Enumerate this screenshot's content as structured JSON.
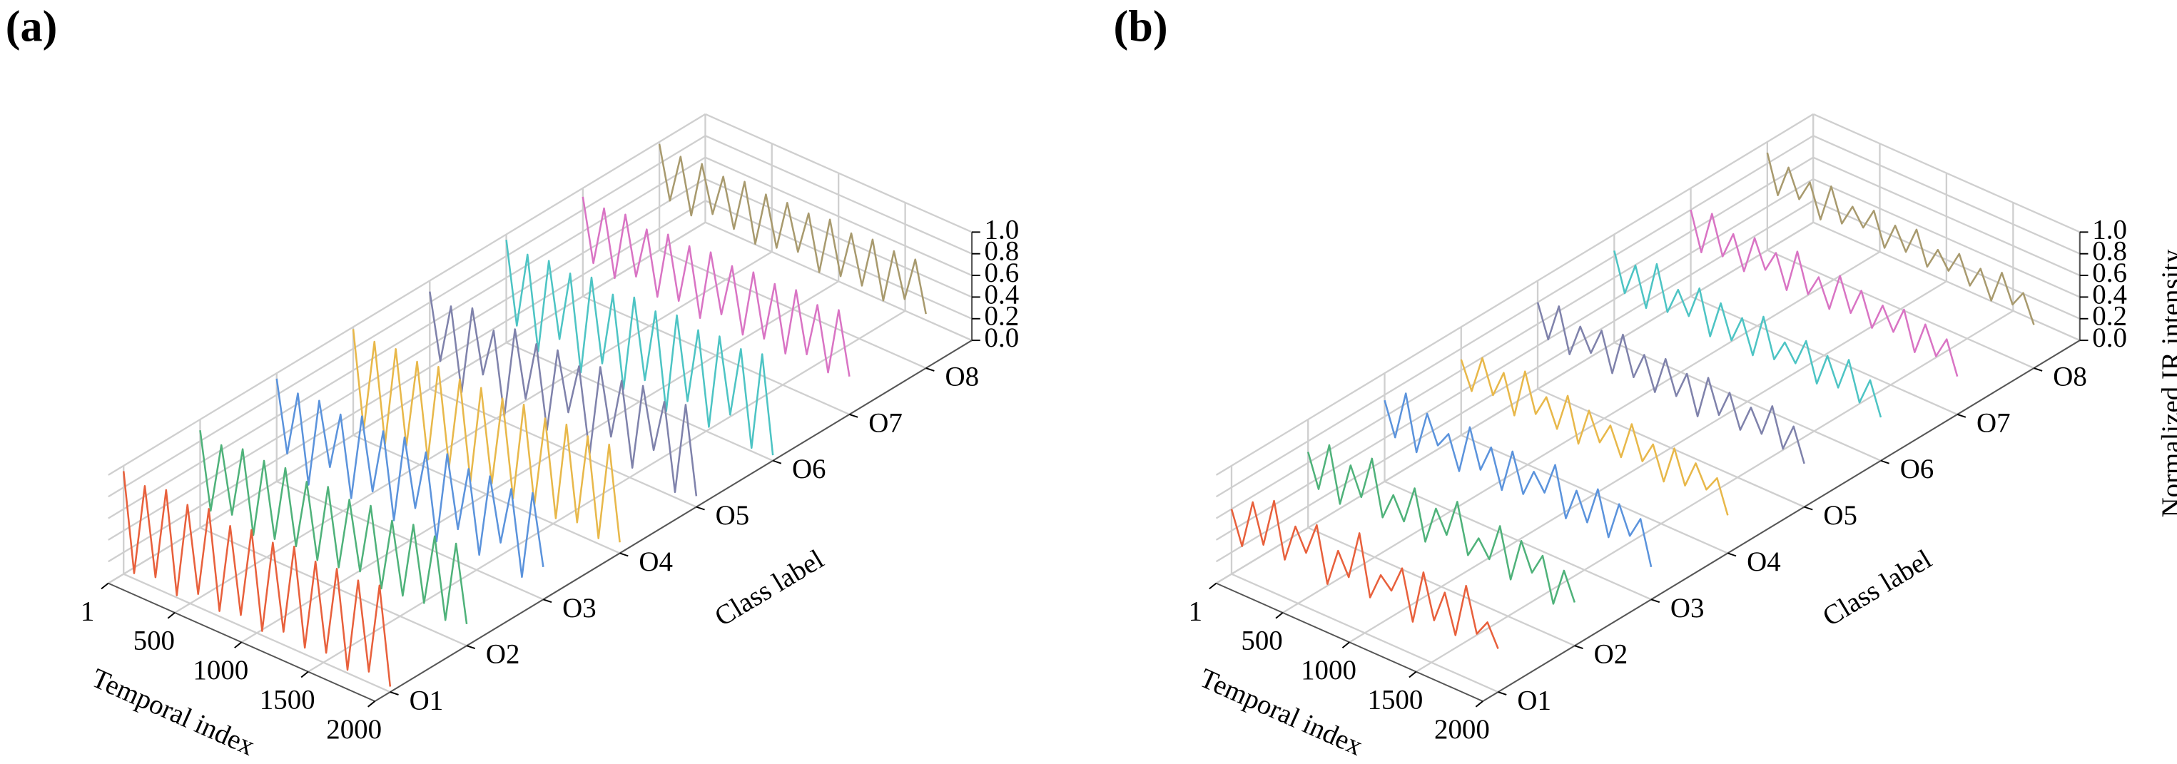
{
  "chart_data": [
    {
      "type": "line3d",
      "title": "(a)",
      "xlabel": "Temporal index",
      "ylabel": "Class label",
      "x": [
        1,
        80,
        160,
        240,
        320,
        400,
        480,
        560,
        640,
        720,
        800,
        880,
        960,
        1040,
        1120,
        1200,
        1280,
        1360,
        1440,
        1520,
        1600,
        1680,
        1760,
        1840,
        1920,
        2000
      ],
      "xlim": [
        1,
        2000
      ],
      "xticks": [
        1,
        500,
        1000,
        1500,
        2000
      ],
      "categories": [
        "O1",
        "O2",
        "O3",
        "O4",
        "O5",
        "O6",
        "O7",
        "O8"
      ],
      "ylim": [
        0.8,
        8.6
      ],
      "zlim": [
        0,
        1
      ],
      "zticks": [
        {
          "value": 0,
          "label": "0.0"
        },
        {
          "value": 0.2,
          "label": "0.2"
        },
        {
          "value": 0.4,
          "label": "0.4"
        },
        {
          "value": 0.6,
          "label": "0.6"
        },
        {
          "value": 0.8,
          "label": "0.8"
        },
        {
          "value": 1,
          "label": "1.0"
        }
      ],
      "grid": true,
      "series": [
        {
          "color": "#e8603c",
          "values": [
            0.95,
            0.05,
            0.9,
            0.1,
            0.95,
            0.02,
            0.9,
            0.12,
            0.95,
            0.05,
            0.88,
            0.1,
            0.93,
            0.04,
            0.9,
            0.12,
            0.95,
            0.06,
            0.9,
            0.1,
            0.92,
            0.03,
            0.9,
            0.1,
            0.94,
            0.05
          ]
        },
        {
          "color": "#4fb27a",
          "values": [
            0.9,
            0.2,
            0.85,
            0.25,
            0.9,
            0.15,
            0.88,
            0.2,
            0.9,
            0.22,
            0.86,
            0.18,
            0.9,
            0.2,
            0.87,
            0.25,
            0.9,
            0.18,
            0.85,
            0.2,
            0.9,
            0.22,
            0.88,
            0.15,
            0.9,
            0.2
          ]
        },
        {
          "color": "#5b93dc",
          "values": [
            0.95,
            0.3,
            0.9,
            0.1,
            0.92,
            0.35,
            0.88,
            0.15,
            0.95,
            0.3,
            0.9,
            0.12,
            0.93,
            0.32,
            0.88,
            0.1,
            0.95,
            0.3,
            0.9,
            0.15,
            0.92,
            0.35,
            0.89,
            0.12,
            0.94,
            0.3
          ]
        },
        {
          "color": "#e8b84a",
          "values": [
            0.98,
            0.1,
            0.95,
            0.05,
            0.97,
            0.12,
            0.94,
            0.08,
            0.98,
            0.1,
            0.95,
            0.05,
            0.96,
            0.12,
            0.95,
            0.07,
            0.98,
            0.1,
            0.94,
            0.06,
            0.97,
            0.11,
            0.95,
            0.05,
            0.96,
            0.1
          ]
        },
        {
          "color": "#7f82ab",
          "values": [
            0.9,
            0.3,
            0.85,
            0.1,
            0.92,
            0.35,
            0.8,
            0.05,
            0.9,
            0.3,
            0.85,
            0.1,
            0.88,
            0.35,
            0.82,
            0.05,
            0.9,
            0.3,
            0.86,
            0.1,
            0.9,
            0.35,
            0.84,
            0.05,
            0.9,
            0.1
          ]
        },
        {
          "color": "#4dc4c4",
          "values": [
            0.95,
            0.2,
            0.9,
            0.05,
            0.93,
            0.25,
            0.9,
            0.03,
            0.95,
            0.2,
            0.88,
            0.05,
            0.94,
            0.22,
            0.9,
            0.02,
            0.95,
            0.2,
            0.9,
            0.05,
            0.93,
            0.25,
            0.9,
            0.03,
            0.94,
            0.05
          ]
        },
        {
          "color": "#d974c4",
          "values": [
            0.92,
            0.35,
            0.9,
            0.3,
            0.93,
            0.4,
            0.88,
            0.3,
            0.92,
            0.35,
            0.9,
            0.28,
            0.93,
            0.4,
            0.89,
            0.3,
            0.92,
            0.35,
            0.9,
            0.3,
            0.93,
            0.38,
            0.88,
            0.3,
            0.92,
            0.35
          ]
        },
        {
          "color": "#a89a6e",
          "values": [
            0.98,
            0.5,
            0.95,
            0.45,
            0.97,
            0.55,
            0.94,
            0.5,
            0.98,
            0.45,
            0.95,
            0.5,
            0.96,
            0.55,
            0.95,
            0.45,
            0.98,
            0.5,
            0.94,
            0.5,
            0.97,
            0.45,
            0.95,
            0.55,
            0.96,
            0.5
          ]
        }
      ]
    },
    {
      "type": "line3d",
      "title": "(b)",
      "xlabel": "Temporal index",
      "ylabel": "Class label",
      "zlabel": "Normalized IR intensity",
      "x": [
        1,
        80,
        160,
        240,
        320,
        400,
        480,
        560,
        640,
        720,
        800,
        880,
        960,
        1040,
        1120,
        1200,
        1280,
        1360,
        1440,
        1520,
        1600,
        1680,
        1760,
        1840,
        1920,
        2000
      ],
      "xlim": [
        1,
        2000
      ],
      "xticks": [
        1,
        500,
        1000,
        1500,
        2000
      ],
      "categories": [
        "O1",
        "O2",
        "O3",
        "O4",
        "O5",
        "O6",
        "O7",
        "O8"
      ],
      "ylim": [
        0.8,
        8.6
      ],
      "zlim": [
        0,
        1
      ],
      "zticks": [
        {
          "value": 0,
          "label": "0.0"
        },
        {
          "value": 0.2,
          "label": "0.2"
        },
        {
          "value": 0.4,
          "label": "0.4"
        },
        {
          "value": 0.6,
          "label": "0.6"
        },
        {
          "value": 0.8,
          "label": "0.8"
        },
        {
          "value": 1,
          "label": "1.0"
        }
      ],
      "grid": true,
      "series": [
        {
          "color": "#e8603c",
          "values": [
            0.6,
            0.3,
            0.75,
            0.4,
            0.85,
            0.35,
            0.7,
            0.5,
            0.8,
            0.3,
            0.65,
            0.45,
            0.9,
            0.35,
            0.6,
            0.5,
            0.75,
            0.3,
            0.8,
            0.4,
            0.7,
            0.35,
            0.85,
            0.45,
            0.6,
            0.4
          ]
        },
        {
          "color": "#4fb27a",
          "values": [
            0.7,
            0.4,
            0.85,
            0.35,
            0.75,
            0.5,
            0.9,
            0.4,
            0.65,
            0.45,
            0.8,
            0.35,
            0.7,
            0.5,
            0.85,
            0.4,
            0.6,
            0.45,
            0.8,
            0.35,
            0.75,
            0.5,
            0.7,
            0.3,
            0.65,
            0.4
          ]
        },
        {
          "color": "#5b93dc",
          "values": [
            0.75,
            0.45,
            0.9,
            0.4,
            0.8,
            0.55,
            0.7,
            0.4,
            0.85,
            0.5,
            0.75,
            0.4,
            0.8,
            0.45,
            0.7,
            0.55,
            0.85,
            0.4,
            0.7,
            0.45,
            0.8,
            0.4,
            0.75,
            0.5,
            0.7,
            0.3
          ]
        },
        {
          "color": "#e8b84a",
          "values": [
            0.7,
            0.45,
            0.8,
            0.5,
            0.75,
            0.4,
            0.85,
            0.5,
            0.7,
            0.45,
            0.8,
            0.4,
            0.75,
            0.5,
            0.7,
            0.45,
            0.8,
            0.5,
            0.7,
            0.4,
            0.75,
            0.45,
            0.7,
            0.5,
            0.65,
            0.35
          ]
        },
        {
          "color": "#7f82ab",
          "values": [
            0.8,
            0.5,
            0.85,
            0.45,
            0.75,
            0.55,
            0.8,
            0.45,
            0.85,
            0.5,
            0.75,
            0.45,
            0.8,
            0.5,
            0.75,
            0.4,
            0.8,
            0.5,
            0.75,
            0.45,
            0.7,
            0.5,
            0.8,
            0.45,
            0.7,
            0.4
          ]
        },
        {
          "color": "#4dc4c4",
          "values": [
            0.85,
            0.5,
            0.8,
            0.45,
            0.9,
            0.5,
            0.75,
            0.55,
            0.85,
            0.45,
            0.8,
            0.5,
            0.75,
            0.45,
            0.85,
            0.5,
            0.7,
            0.55,
            0.8,
            0.45,
            0.75,
            0.5,
            0.8,
            0.45,
            0.7,
            0.4
          ]
        },
        {
          "color": "#d974c4",
          "values": [
            0.8,
            0.45,
            0.85,
            0.5,
            0.75,
            0.45,
            0.8,
            0.55,
            0.75,
            0.45,
            0.85,
            0.5,
            0.7,
            0.45,
            0.8,
            0.5,
            0.75,
            0.45,
            0.7,
            0.5,
            0.75,
            0.4,
            0.7,
            0.45,
            0.65,
            0.35
          ]
        },
        {
          "color": "#a89a6e",
          "values": [
            0.9,
            0.55,
            0.85,
            0.6,
            0.8,
            0.5,
            0.85,
            0.55,
            0.75,
            0.6,
            0.8,
            0.5,
            0.75,
            0.55,
            0.8,
            0.5,
            0.7,
            0.55,
            0.75,
            0.5,
            0.7,
            0.45,
            0.75,
            0.5,
            0.65,
            0.4
          ]
        }
      ]
    }
  ]
}
